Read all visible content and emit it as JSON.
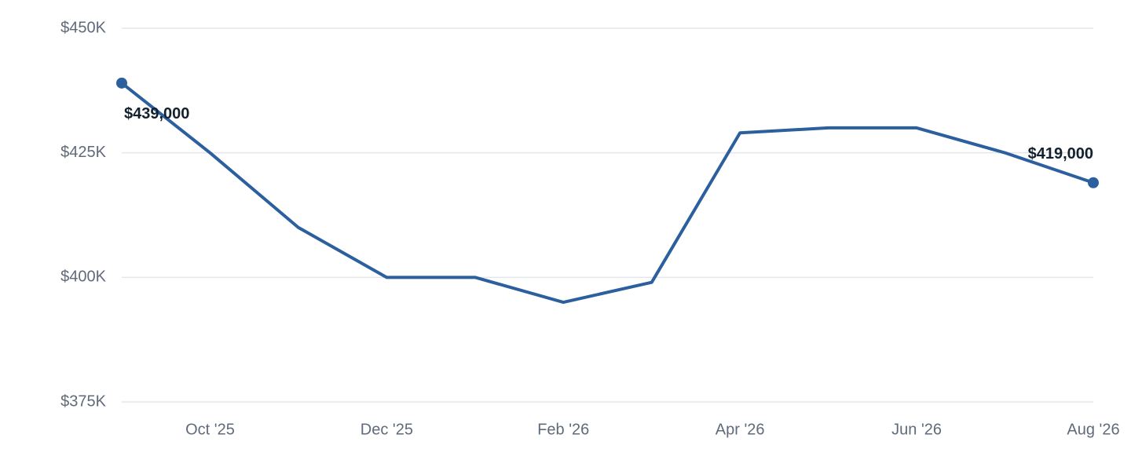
{
  "chart_data": {
    "type": "line",
    "categories": [
      null,
      "Oct '25",
      null,
      "Dec '25",
      null,
      "Feb '26",
      null,
      "Apr '26",
      null,
      "Jun '26",
      null,
      "Aug '26"
    ],
    "series": [
      {
        "name": null,
        "color": "#2c5f9e",
        "values": [
          439000,
          425000,
          410000,
          400000,
          400000,
          395000,
          399000,
          429000,
          430000,
          430000,
          425000,
          419000
        ],
        "value_labels": [
          "$439,000",
          null,
          null,
          null,
          null,
          null,
          null,
          null,
          null,
          null,
          null,
          "$419,000"
        ]
      }
    ],
    "ylim": [
      375000,
      450000
    ],
    "yticks": [
      {
        "value": 375000,
        "label": "$375K"
      },
      {
        "value": 400000,
        "label": "$400K"
      },
      {
        "value": 425000,
        "label": "$425K"
      },
      {
        "value": 450000,
        "label": "$450K"
      }
    ],
    "grid": true
  }
}
